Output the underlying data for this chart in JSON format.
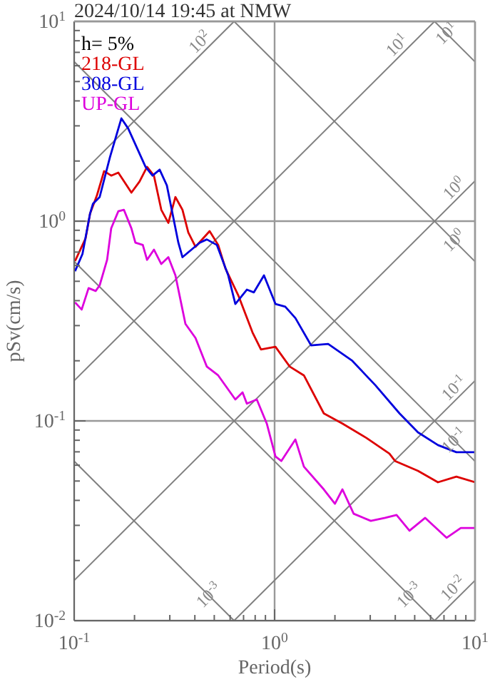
{
  "chart_data": {
    "type": "line",
    "title": "2024/10/14 19:45 at NMW",
    "xlabel": "Period(s)",
    "ylabel": "pSv(cm/s)",
    "log": "xy",
    "grid": true,
    "legend": "top left",
    "xlim": [
      0.1,
      10
    ],
    "ylim": [
      0.01,
      10
    ],
    "xticks": [
      {
        "value": 0.1,
        "label": "10$^{-1}$"
      },
      {
        "value": 0.2,
        "label": null
      },
      {
        "value": 0.3,
        "label": null
      },
      {
        "value": 0.4,
        "label": null
      },
      {
        "value": 0.5,
        "label": null
      },
      {
        "value": 0.6,
        "label": null
      },
      {
        "value": 0.7,
        "label": null
      },
      {
        "value": 0.8,
        "label": null
      },
      {
        "value": 0.9,
        "label": null
      },
      {
        "value": 1,
        "label": "10$^{0}$"
      },
      {
        "value": 2,
        "label": null
      },
      {
        "value": 3,
        "label": null
      },
      {
        "value": 4,
        "label": null
      },
      {
        "value": 5,
        "label": null
      },
      {
        "value": 6,
        "label": null
      },
      {
        "value": 7,
        "label": null
      },
      {
        "value": 8,
        "label": null
      },
      {
        "value": 9,
        "label": null
      },
      {
        "value": 10,
        "label": "10$^{1}$"
      }
    ],
    "yticks": [
      {
        "value": 0.01,
        "label": "10$^{-2}$"
      },
      {
        "value": 0.02,
        "label": null
      },
      {
        "value": 0.03,
        "label": null
      },
      {
        "value": 0.04,
        "label": null
      },
      {
        "value": 0.05,
        "label": null
      },
      {
        "value": 0.06,
        "label": null
      },
      {
        "value": 0.07,
        "label": null
      },
      {
        "value": 0.08,
        "label": null
      },
      {
        "value": 0.09,
        "label": null
      },
      {
        "value": 0.1,
        "label": "10$^{-1}$"
      },
      {
        "value": 0.2,
        "label": null
      },
      {
        "value": 0.3,
        "label": null
      },
      {
        "value": 0.4,
        "label": null
      },
      {
        "value": 0.5,
        "label": null
      },
      {
        "value": 0.6,
        "label": null
      },
      {
        "value": 0.7,
        "label": null
      },
      {
        "value": 0.8,
        "label": null
      },
      {
        "value": 0.9,
        "label": null
      },
      {
        "value": 1,
        "label": "10$^{0}$"
      },
      {
        "value": 2,
        "label": null
      },
      {
        "value": 3,
        "label": null
      },
      {
        "value": 4,
        "label": null
      },
      {
        "value": 5,
        "label": null
      },
      {
        "value": 6,
        "label": null
      },
      {
        "value": 7,
        "label": null
      },
      {
        "value": 8,
        "label": null
      },
      {
        "value": 9,
        "label": null
      },
      {
        "value": 10,
        "label": "10$^{1}$"
      }
    ],
    "series": [
      {
        "color": "#808080",
        "x": [
          6.28,
          10
        ],
        "values": [
          10,
          6.28
        ]
      },
      {
        "color": "#808080",
        "x": [
          0.628,
          10
        ],
        "values": [
          10,
          0.628
        ]
      },
      {
        "color": "#808080",
        "x": [
          0.1,
          10
        ],
        "values": [
          6.28,
          0.0628
        ]
      },
      {
        "color": "#808080",
        "x": [
          0.1,
          6.28
        ],
        "values": [
          0.628,
          0.01
        ]
      },
      {
        "color": "#808080",
        "x": [
          0.1,
          0.628
        ],
        "values": [
          0.0628,
          0.01
        ]
      },
      {
        "color": "#808080",
        "x": [
          0.1,
          0.628
        ],
        "values": [
          1.59,
          10
        ]
      },
      {
        "color": "#808080",
        "x": [
          0.1,
          6.28
        ],
        "values": [
          0.159,
          10
        ]
      },
      {
        "color": "#808080",
        "x": [
          0.1,
          10
        ],
        "values": [
          0.0159,
          1.59
        ]
      },
      {
        "color": "#808080",
        "x": [
          0.628,
          10
        ],
        "values": [
          0.01,
          0.159
        ]
      },
      {
        "color": "#808080",
        "x": [
          6.28,
          10
        ],
        "values": [
          0.01,
          0.0159
        ]
      },
      {
        "name": "218-GL",
        "color": "#dd0000",
        "x": [
          0.101,
          0.114,
          0.12,
          0.13,
          0.141,
          0.153,
          0.166,
          0.193,
          0.212,
          0.231,
          0.25,
          0.272,
          0.295,
          0.32,
          0.347,
          0.371,
          0.403,
          0.474,
          0.523,
          0.568,
          0.659,
          0.776,
          0.855,
          1.01,
          1.19,
          1.4,
          1.76,
          2.18,
          2.88,
          3.74,
          3.99,
          5.19,
          6.53,
          8.07,
          10
        ],
        "values": [
          0.631,
          0.82,
          1.09,
          1.35,
          1.78,
          1.69,
          1.75,
          1.39,
          1.58,
          1.87,
          1.69,
          1.14,
          0.98,
          1.32,
          1.14,
          0.877,
          0.744,
          0.891,
          0.76,
          0.581,
          0.425,
          0.277,
          0.228,
          0.235,
          0.187,
          0.169,
          0.109,
          0.097,
          0.082,
          0.0686,
          0.063,
          0.0562,
          0.0493,
          0.0526,
          0.0493
        ]
      },
      {
        "name": "308-GL",
        "color": "#0000dd",
        "x": [
          0.101,
          0.11,
          0.12,
          0.124,
          0.134,
          0.151,
          0.172,
          0.186,
          0.227,
          0.246,
          0.267,
          0.29,
          0.331,
          0.347,
          0.423,
          0.459,
          0.515,
          0.587,
          0.637,
          0.727,
          0.788,
          0.885,
          1.01,
          1.13,
          1.27,
          1.52,
          1.85,
          2.44,
          3.18,
          4.2,
          5.19,
          6.53,
          8.07,
          10
        ],
        "values": [
          0.562,
          0.685,
          1.09,
          1.22,
          1.32,
          2.1,
          3.27,
          2.91,
          1.87,
          1.69,
          1.81,
          1.51,
          0.78,
          0.66,
          0.78,
          0.81,
          0.76,
          0.535,
          0.385,
          0.454,
          0.44,
          0.535,
          0.385,
          0.373,
          0.327,
          0.239,
          0.243,
          0.2,
          0.151,
          0.109,
          0.0877,
          0.0757,
          0.0697,
          0.0697
        ]
      },
      {
        "name": "UP-GL",
        "color": "#dd00dd",
        "x": [
          0.101,
          0.109,
          0.118,
          0.128,
          0.134,
          0.146,
          0.153,
          0.166,
          0.177,
          0.193,
          0.202,
          0.22,
          0.231,
          0.25,
          0.272,
          0.295,
          0.32,
          0.359,
          0.403,
          0.459,
          0.523,
          0.637,
          0.692,
          0.727,
          0.815,
          0.914,
          1.01,
          1.08,
          1.27,
          1.4,
          1.76,
          2.0,
          2.18,
          2.48,
          3.02,
          3.56,
          4.06,
          4.71,
          5.64,
          7.21,
          8.49,
          10
        ],
        "values": [
          0.392,
          0.361,
          0.462,
          0.447,
          0.477,
          0.641,
          0.921,
          1.12,
          1.14,
          0.92,
          0.78,
          0.76,
          0.64,
          0.72,
          0.61,
          0.66,
          0.535,
          0.306,
          0.26,
          0.187,
          0.169,
          0.128,
          0.139,
          0.122,
          0.128,
          0.097,
          0.0663,
          0.063,
          0.0807,
          0.059,
          0.0454,
          0.0385,
          0.0454,
          0.0343,
          0.0316,
          0.0327,
          0.0338,
          0.0282,
          0.0327,
          0.026,
          0.0291,
          0.0291
        ]
      }
    ],
    "annotations": [
      "h= 5%",
      {
        "text": "10$^{2}$",
        "x": 0.458,
        "y": 7.29
      },
      {
        "text": "10$^{1}$",
        "x": 4.41,
        "y": 7.02
      },
      {
        "text": "10$^{1}$",
        "x": 7.8,
        "y": 8.05
      },
      {
        "text": "10$^{0}$",
        "x": 8.5,
        "y": 1.35
      },
      {
        "text": "10$^{0}$",
        "x": 8.5,
        "y": 0.739
      },
      {
        "text": "10$^{-1}$",
        "x": 8.5,
        "y": 0.135
      },
      {
        "text": "10$^{-1}$",
        "x": 8.5,
        "y": 0.0739
      },
      {
        "text": "10$^{-3}$",
        "x": 0.507,
        "y": 0.0124
      },
      {
        "text": "10$^{-3}$",
        "x": 5.07,
        "y": 0.0124
      },
      {
        "text": "10$^{-2}$",
        "x": 8.4,
        "y": 0.0134
      }
    ]
  }
}
